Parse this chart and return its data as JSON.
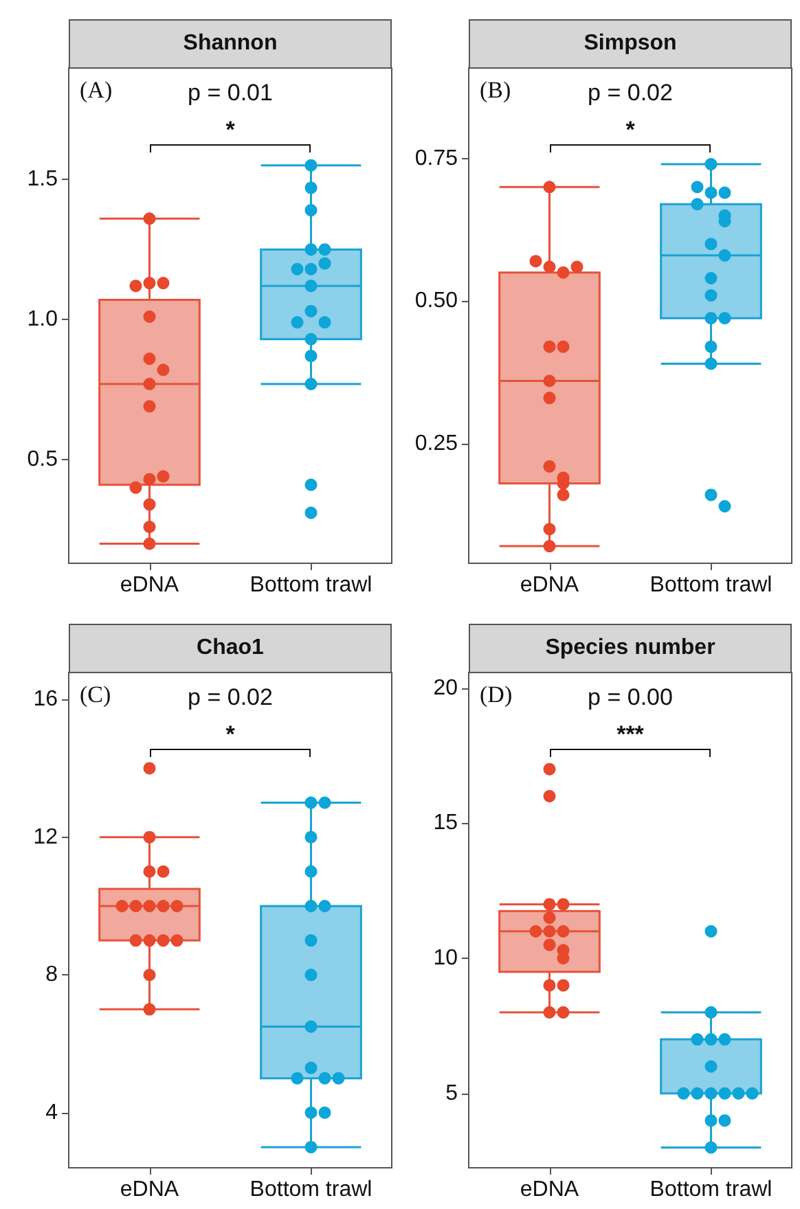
{
  "chart_data": [
    {
      "type": "box",
      "title": "Shannon",
      "categories": [
        "eDNA",
        "Bottom trawl"
      ],
      "colors": [
        "#e5533b",
        "#1aa2d4"
      ],
      "ylim": [
        0.13,
        1.9
      ],
      "yticks": [
        0.5,
        {
          "value": 1,
          "label": "1.0"
        },
        1.5
      ],
      "grid": false,
      "marker": "circle",
      "annotations": [
        "(A)",
        "p = 0.01",
        "*"
      ],
      "boxes": [
        {
          "low": 0.2,
          "q1": 0.41,
          "median": 0.77,
          "q3": 1.07,
          "high": 1.36
        },
        {
          "low": 0.77,
          "q1": 0.93,
          "median": 1.12,
          "q3": 1.25,
          "high": 1.55
        }
      ],
      "series": [
        {
          "type": "scatter",
          "color": "#e8482c",
          "x": [
            "eDNA",
            "eDNA",
            "eDNA",
            "eDNA",
            "eDNA",
            "eDNA",
            "eDNA",
            "eDNA",
            "eDNA",
            "eDNA",
            "eDNA",
            "eDNA",
            "eDNA",
            "eDNA",
            "eDNA"
          ],
          "values": [
            1.36,
            1.13,
            1.13,
            1.12,
            1.01,
            0.86,
            0.82,
            0.77,
            0.69,
            0.43,
            0.44,
            0.4,
            0.34,
            0.26,
            0.2
          ]
        },
        {
          "type": "scatter",
          "color": "#0ea5d9",
          "x": [
            "Bottom trawl",
            "Bottom trawl",
            "Bottom trawl",
            "Bottom trawl",
            "Bottom trawl",
            "Bottom trawl",
            "Bottom trawl",
            "Bottom trawl",
            "Bottom trawl",
            "Bottom trawl",
            "Bottom trawl",
            "Bottom trawl",
            "Bottom trawl",
            "Bottom trawl",
            "Bottom trawl",
            "Bottom trawl",
            "Bottom trawl"
          ],
          "values": [
            1.55,
            1.47,
            1.39,
            1.25,
            1.25,
            1.18,
            1.2,
            1.18,
            1.12,
            1.03,
            0.99,
            0.99,
            0.93,
            0.87,
            0.77,
            0.41,
            0.31
          ]
        }
      ]
    },
    {
      "type": "box",
      "title": "Simpson",
      "categories": [
        "eDNA",
        "Bottom trawl"
      ],
      "colors": [
        "#e5533b",
        "#1aa2d4"
      ],
      "ylim": [
        0.04,
        0.91
      ],
      "yticks": [
        0.25,
        {
          "value": 0.5,
          "label": "0.50"
        },
        0.75
      ],
      "grid": false,
      "marker": "circle",
      "annotations": [
        "(B)",
        "p = 0.02",
        "*"
      ],
      "boxes": [
        {
          "low": 0.07,
          "q1": 0.18,
          "median": 0.36,
          "q3": 0.55,
          "high": 0.7
        },
        {
          "low": 0.39,
          "q1": 0.47,
          "median": 0.58,
          "q3": 0.67,
          "high": 0.74
        }
      ],
      "series": [
        {
          "type": "scatter",
          "color": "#e8482c",
          "x": [
            "eDNA",
            "eDNA",
            "eDNA",
            "eDNA",
            "eDNA",
            "eDNA",
            "eDNA",
            "eDNA",
            "eDNA",
            "eDNA",
            "eDNA",
            "eDNA",
            "eDNA",
            "eDNA",
            "eDNA"
          ],
          "values": [
            0.7,
            0.56,
            0.55,
            0.57,
            0.56,
            0.42,
            0.42,
            0.33,
            0.36,
            0.21,
            0.19,
            0.18,
            0.16,
            0.1,
            0.07
          ]
        },
        {
          "type": "scatter",
          "color": "#0ea5d9",
          "x": [
            "Bottom trawl",
            "Bottom trawl",
            "Bottom trawl",
            "Bottom trawl",
            "Bottom trawl",
            "Bottom trawl",
            "Bottom trawl",
            "Bottom trawl",
            "Bottom trawl",
            "Bottom trawl",
            "Bottom trawl",
            "Bottom trawl",
            "Bottom trawl",
            "Bottom trawl",
            "Bottom trawl",
            "Bottom trawl",
            "Bottom trawl"
          ],
          "values": [
            0.74,
            0.69,
            0.69,
            0.7,
            0.67,
            0.65,
            0.64,
            0.6,
            0.58,
            0.54,
            0.51,
            0.47,
            0.47,
            0.42,
            0.39,
            0.16,
            0.14
          ]
        }
      ]
    },
    {
      "type": "box",
      "title": "Chao1",
      "categories": [
        "eDNA",
        "Bottom trawl"
      ],
      "colors": [
        "#e5533b",
        "#1aa2d4"
      ],
      "ylim": [
        2.4,
        16.8
      ],
      "yticks": [
        4,
        8,
        12,
        16
      ],
      "grid": false,
      "marker": "circle",
      "annotations": [
        "(C)",
        "p = 0.02",
        "*"
      ],
      "boxes": [
        {
          "low": 7,
          "q1": 9,
          "median": 10,
          "q3": 10.5,
          "high": 12
        },
        {
          "low": 3,
          "q1": 5,
          "median": 6.5,
          "q3": 10,
          "high": 13
        }
      ],
      "series": [
        {
          "type": "scatter",
          "color": "#e8482c",
          "x": [
            "eDNA",
            "eDNA",
            "eDNA",
            "eDNA",
            "eDNA",
            "eDNA",
            "eDNA",
            "eDNA",
            "eDNA",
            "eDNA",
            "eDNA",
            "eDNA",
            "eDNA",
            "eDNA",
            "eDNA"
          ],
          "values": [
            14,
            12,
            11,
            11,
            10,
            10,
            10,
            10,
            10,
            9,
            9,
            9,
            9,
            8,
            7
          ]
        },
        {
          "type": "scatter",
          "color": "#0ea5d9",
          "x": [
            "Bottom trawl",
            "Bottom trawl",
            "Bottom trawl",
            "Bottom trawl",
            "Bottom trawl",
            "Bottom trawl",
            "Bottom trawl",
            "Bottom trawl",
            "Bottom trawl",
            "Bottom trawl",
            "Bottom trawl",
            "Bottom trawl",
            "Bottom trawl",
            "Bottom trawl",
            "Bottom trawl",
            "Bottom trawl"
          ],
          "values": [
            13,
            13,
            12,
            11,
            10,
            10,
            9,
            8,
            6.5,
            5.3,
            5,
            5,
            5,
            4,
            4,
            3
          ]
        }
      ]
    },
    {
      "type": "box",
      "title": "Species number",
      "categories": [
        "eDNA",
        "Bottom trawl"
      ],
      "colors": [
        "#e5533b",
        "#1aa2d4"
      ],
      "ylim": [
        2.25,
        20.6
      ],
      "yticks": [
        5,
        10,
        15,
        20
      ],
      "grid": false,
      "marker": "circle",
      "annotations": [
        "(D)",
        "p = 0.00",
        "***"
      ],
      "boxes": [
        {
          "low": 8,
          "q1": 9.5,
          "median": 11,
          "q3": 11.75,
          "high": 12
        },
        {
          "low": 3,
          "q1": 5,
          "median": 5,
          "q3": 7,
          "high": 8
        }
      ],
      "series": [
        {
          "type": "scatter",
          "color": "#e8482c",
          "x": [
            "eDNA",
            "eDNA",
            "eDNA",
            "eDNA",
            "eDNA",
            "eDNA",
            "eDNA",
            "eDNA",
            "eDNA",
            "eDNA",
            "eDNA",
            "eDNA",
            "eDNA",
            "eDNA",
            "eDNA"
          ],
          "values": [
            17,
            16,
            12,
            12,
            11.5,
            11,
            11,
            11,
            10.5,
            10.3,
            10,
            9,
            9,
            8,
            8
          ]
        },
        {
          "type": "scatter",
          "color": "#0ea5d9",
          "x": [
            "Bottom trawl",
            "Bottom trawl",
            "Bottom trawl",
            "Bottom trawl",
            "Bottom trawl",
            "Bottom trawl",
            "Bottom trawl",
            "Bottom trawl",
            "Bottom trawl",
            "Bottom trawl",
            "Bottom trawl",
            "Bottom trawl",
            "Bottom trawl",
            "Bottom trawl",
            "Bottom trawl"
          ],
          "values": [
            11,
            8,
            7,
            7,
            7,
            6,
            5,
            5,
            5,
            5,
            5,
            5,
            4,
            4,
            3
          ]
        }
      ]
    }
  ]
}
